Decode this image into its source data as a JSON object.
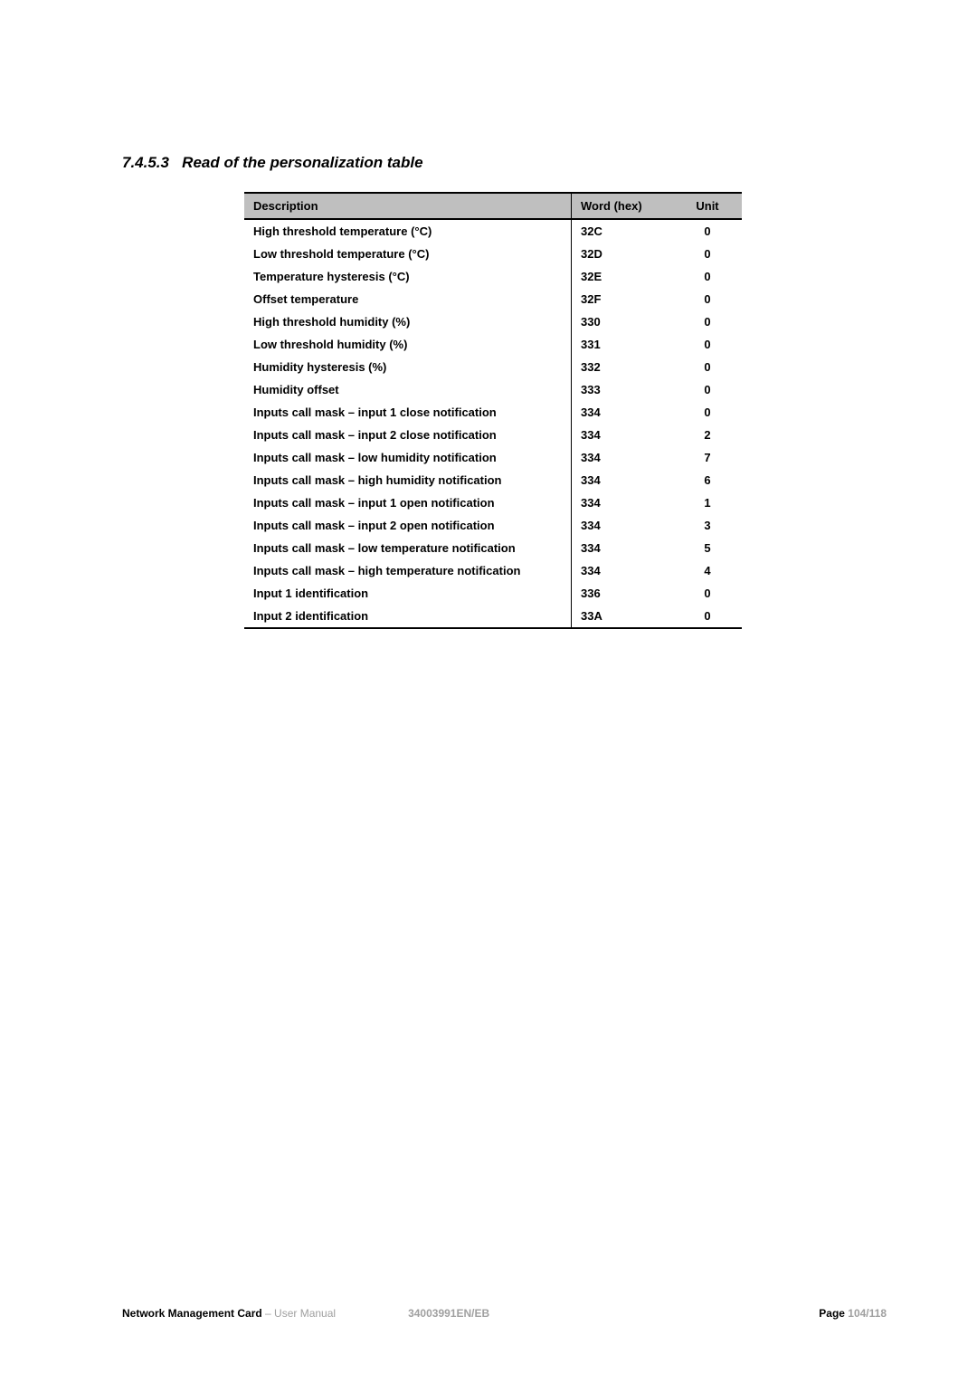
{
  "heading": {
    "number": "7.4.5.3",
    "title": "Read of the personalization table"
  },
  "table": {
    "columns": [
      "Description",
      "Word (hex)",
      "Unit"
    ],
    "rows": [
      [
        "High threshold temperature (°C)",
        "32C",
        "0"
      ],
      [
        "Low threshold temperature (°C)",
        "32D",
        "0"
      ],
      [
        "Temperature hysteresis (°C)",
        "32E",
        "0"
      ],
      [
        "Offset temperature",
        "32F",
        "0"
      ],
      [
        "High threshold humidity (%)",
        "330",
        "0"
      ],
      [
        "Low threshold humidity (%)",
        "331",
        "0"
      ],
      [
        "Humidity hysteresis (%)",
        "332",
        "0"
      ],
      [
        "Humidity offset",
        "333",
        "0"
      ],
      [
        "Inputs call mask – input 1 close notification",
        "334",
        "0"
      ],
      [
        "Inputs call mask – input 2 close notification",
        "334",
        "2"
      ],
      [
        "Inputs call mask – low humidity notification",
        "334",
        "7"
      ],
      [
        "Inputs call mask – high humidity notification",
        "334",
        "6"
      ],
      [
        "Inputs call mask – input 1 open notification",
        "334",
        "1"
      ],
      [
        "Inputs call mask – input 2 open notification",
        "334",
        "3"
      ],
      [
        "Inputs call mask – low temperature notification",
        "334",
        "5"
      ],
      [
        "Inputs call mask – high temperature notification",
        "334",
        "4"
      ],
      [
        "Input 1 identification",
        "336",
        "0"
      ],
      [
        "Input 2 identification",
        "33A",
        "0"
      ]
    ]
  },
  "footer": {
    "doc_title": "Network Management Card",
    "doc_suffix": " – User Manual",
    "doc_code": "34003991EN/EB",
    "page_label": "Page ",
    "page_num": "104/118"
  }
}
